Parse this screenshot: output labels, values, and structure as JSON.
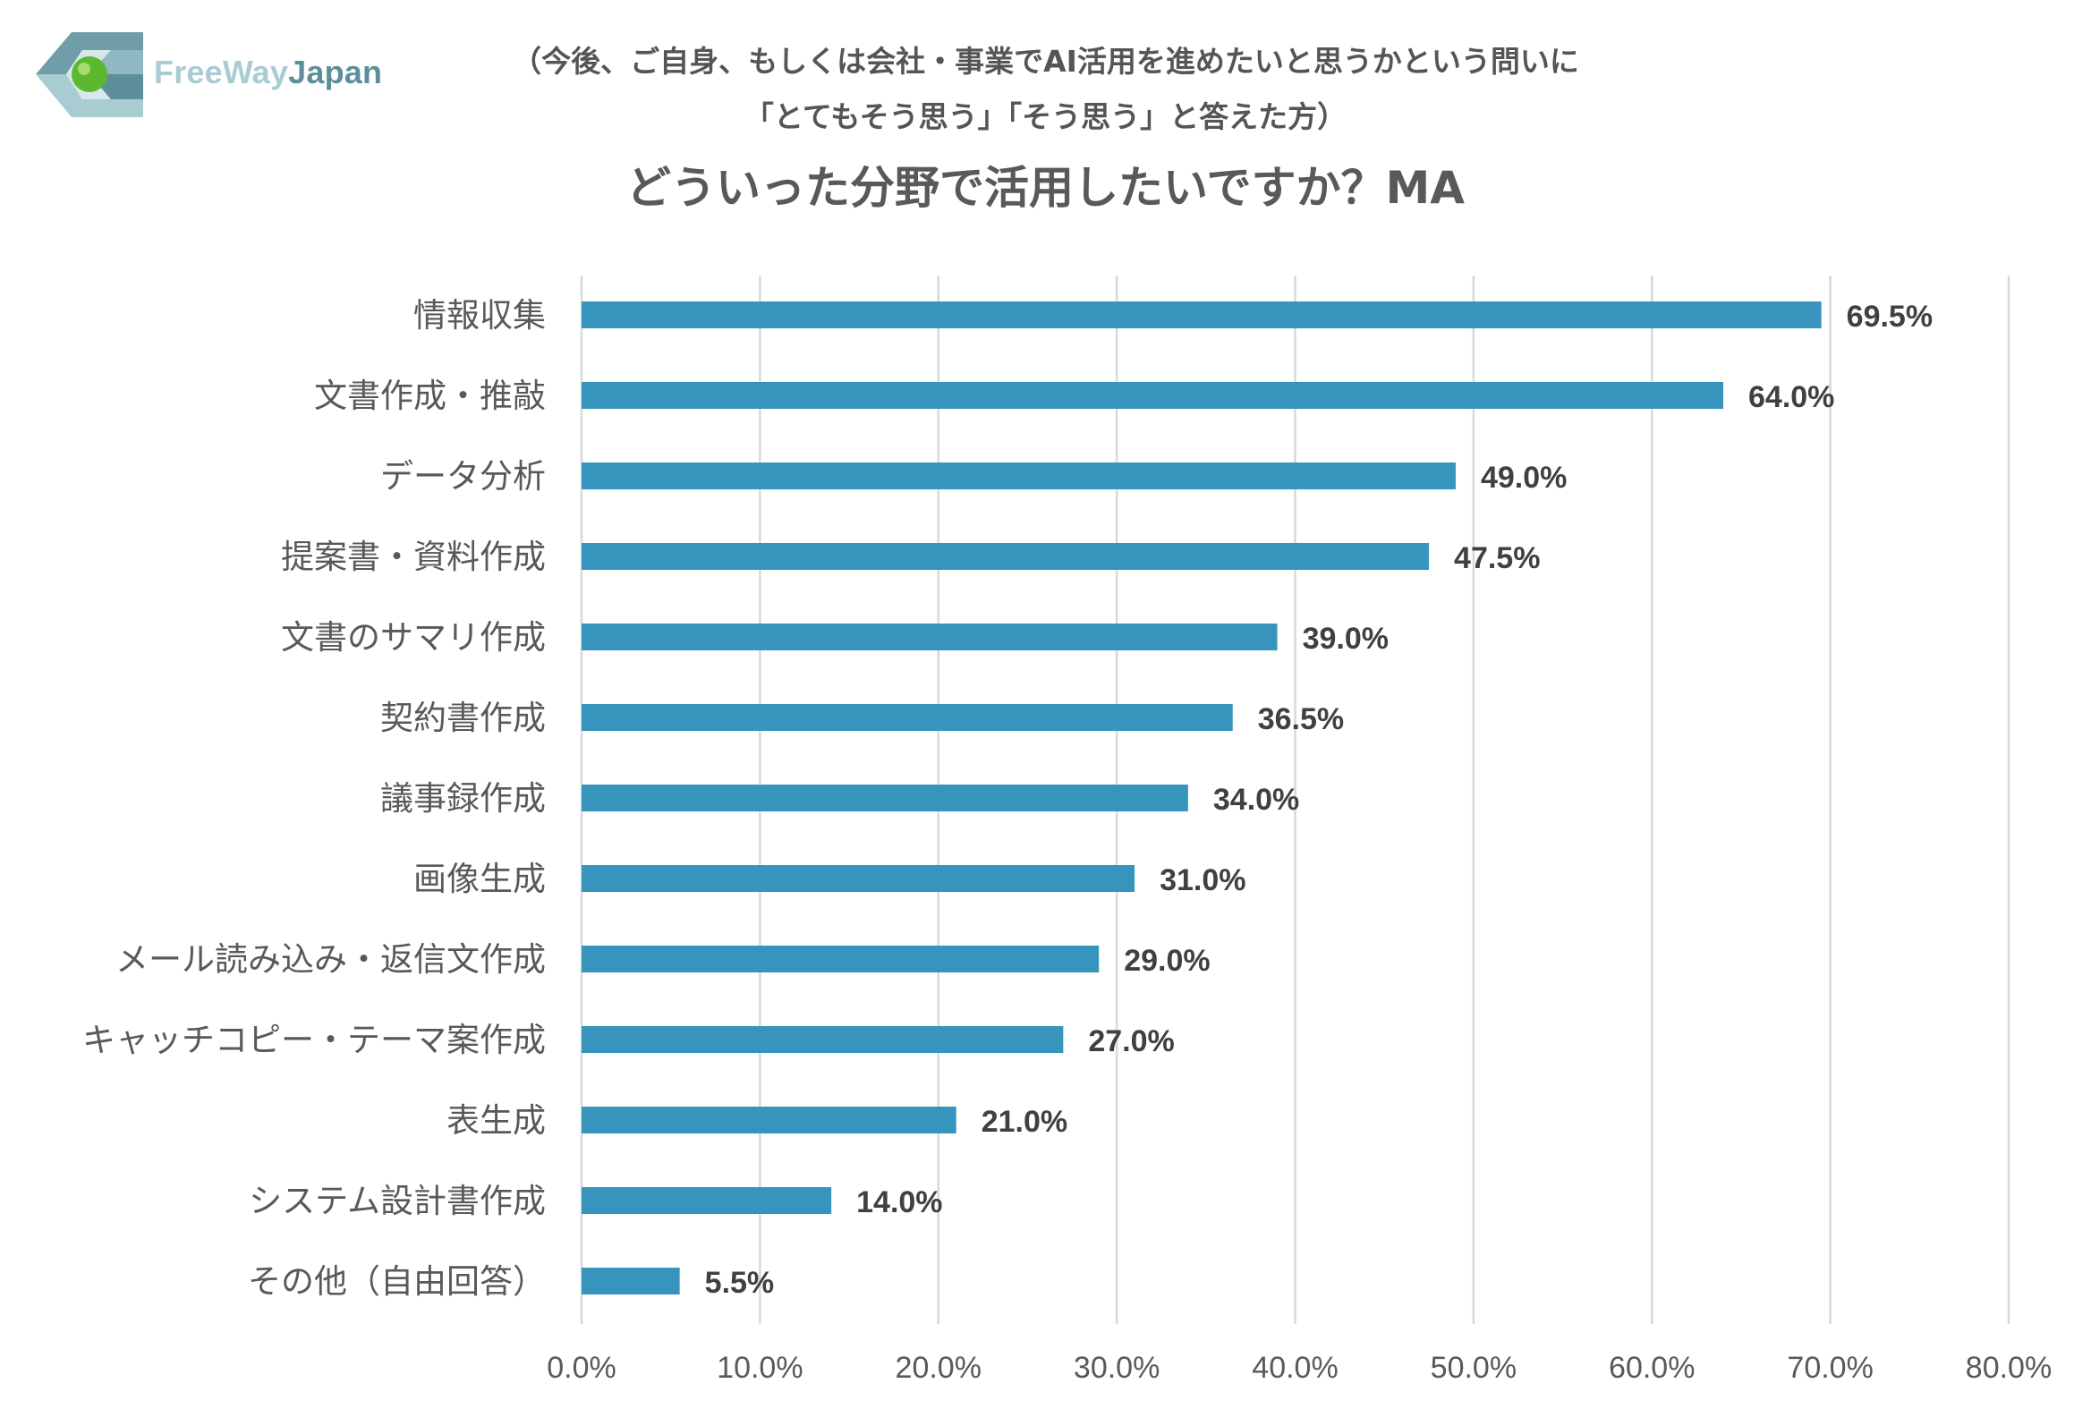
{
  "brand": {
    "name_part1": "FreeWay",
    "name_part2": "Japan",
    "colors": {
      "light": "#a9ccd3",
      "dark": "#5d8f9a",
      "accent_green": "#5cb82e"
    }
  },
  "header": {
    "subtitle_line1": "（今後、ご自身、もしくは会社・事業でAI活用を進めたいと思うかという問いに",
    "subtitle_line2": "「とてもそう思う」「そう思う」と答えた方）",
    "title": "どういった分野で活用したいですか？MA"
  },
  "chart_data": {
    "type": "bar",
    "orientation": "horizontal",
    "title": "どういった分野で活用したいですか？MA",
    "categories": [
      "情報収集",
      "文書作成・推敲",
      "データ分析",
      "提案書・資料作成",
      "文書のサマリ作成",
      "契約書作成",
      "議事録作成",
      "画像生成",
      "メール読み込み・返信文作成",
      "キャッチコピー・テーマ案作成",
      "表生成",
      "システム設計書作成",
      "その他（自由回答）"
    ],
    "values": [
      69.5,
      64.0,
      49.0,
      47.5,
      39.0,
      36.5,
      34.0,
      31.0,
      29.0,
      27.0,
      21.0,
      14.0,
      5.5
    ],
    "value_labels": [
      "69.5%",
      "64.0%",
      "49.0%",
      "47.5%",
      "39.0%",
      "36.5%",
      "34.0%",
      "31.0%",
      "29.0%",
      "27.0%",
      "21.0%",
      "14.0%",
      "5.5%"
    ],
    "xlim": [
      0,
      80
    ],
    "x_ticks": [
      0,
      10,
      20,
      30,
      40,
      50,
      60,
      70,
      80
    ],
    "x_tick_labels": [
      "0.0%",
      "10.0%",
      "20.0%",
      "30.0%",
      "40.0%",
      "50.0%",
      "60.0%",
      "70.0%",
      "80.0%"
    ],
    "grid": true,
    "xlabel": "",
    "ylabel": "",
    "bar_color": "#3795bd",
    "grid_color": "#d9d9d9"
  }
}
